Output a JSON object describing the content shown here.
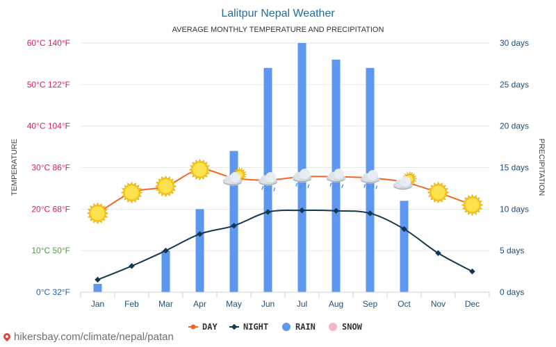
{
  "chart_data": {
    "type": "combo",
    "title": "Lalitpur Nepal Weather",
    "subtitle": "AVERAGE MONTHLY TEMPERATURE AND PRECIPITATION",
    "ylabel_left": "TEMPERATURE",
    "ylabel_right": "PRECIPITATION",
    "categories": [
      "Jan",
      "Feb",
      "Mar",
      "Apr",
      "May",
      "Jun",
      "Jul",
      "Aug",
      "Sep",
      "Oct",
      "Nov",
      "Dec"
    ],
    "left_axis": {
      "range": [
        0,
        60
      ],
      "ticks": [
        {
          "value": 60,
          "label": "60°C 140°F",
          "color": "#d81b60"
        },
        {
          "value": 50,
          "label": "50°C 122°F",
          "color": "#d81b60"
        },
        {
          "value": 40,
          "label": "40°C 104°F",
          "color": "#d81b60"
        },
        {
          "value": 30,
          "label": "30°C 86°F",
          "color": "#d81b60"
        },
        {
          "value": 20,
          "label": "20°C 68°F",
          "color": "#d81b60"
        },
        {
          "value": 10,
          "label": "10°C 50°F",
          "color": "#43a047"
        },
        {
          "value": 0,
          "label": "0°C 32°F",
          "color": "#1565c0"
        }
      ]
    },
    "right_axis": {
      "range": [
        0,
        30
      ],
      "ticks": [
        {
          "value": 30,
          "label": "30 days"
        },
        {
          "value": 25,
          "label": "25 days"
        },
        {
          "value": 20,
          "label": "20 days"
        },
        {
          "value": 15,
          "label": "15 days"
        },
        {
          "value": 10,
          "label": "10 days"
        },
        {
          "value": 5,
          "label": "5 days"
        },
        {
          "value": 0,
          "label": "0 days"
        }
      ]
    },
    "series": [
      {
        "name": "DAY",
        "kind": "line",
        "axis": "left",
        "color": "#f26522",
        "values": [
          19,
          24,
          25.5,
          29.5,
          27.5,
          27,
          27.8,
          27.8,
          27.5,
          26.5,
          24,
          21
        ]
      },
      {
        "name": "NIGHT",
        "kind": "line",
        "axis": "left",
        "color": "#12384f",
        "values": [
          3,
          6.3,
          10,
          14,
          16,
          19.3,
          19.7,
          19.6,
          19,
          15.2,
          9.4,
          5
        ]
      },
      {
        "name": "RAIN",
        "kind": "bar",
        "axis": "right",
        "color": "#5e97f0",
        "values": [
          1,
          0,
          5,
          10,
          17,
          27,
          30,
          28,
          27,
          11,
          0,
          0
        ]
      },
      {
        "name": "SNOW",
        "kind": "bar",
        "axis": "right",
        "color": "#f7b5c8",
        "values": [
          0,
          0,
          0,
          0,
          0,
          0,
          0,
          0,
          0,
          0,
          0,
          0
        ]
      }
    ],
    "weather_icons": [
      "sun-icon",
      "sun-icon",
      "sun-icon",
      "sun-icon",
      "partly-cloudy-icon",
      "rain-cloud-icon",
      "rain-cloud-icon",
      "rain-cloud-icon",
      "rain-cloud-icon",
      "partly-cloudy-icon",
      "sun-icon",
      "sun-icon"
    ],
    "grid": true,
    "legend_position": "bottom"
  },
  "footer": {
    "text": "hikersbay.com/climate/nepal/patan"
  }
}
